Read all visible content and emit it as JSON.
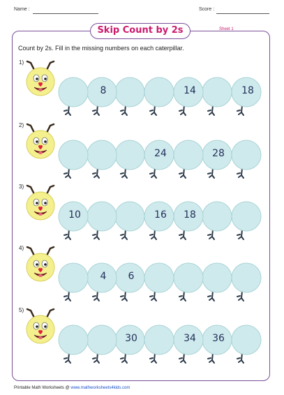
{
  "header": {
    "name_label": "Name :",
    "score_label": "Score :"
  },
  "title": "Skip Count by 2s",
  "sheet": "Sheet 1",
  "instructions": "Count by 2s. Fill in the missing numbers on each caterpillar.",
  "problems": [
    {
      "label": "1)",
      "segments": [
        "",
        "8",
        "",
        "",
        "14",
        "",
        "18"
      ]
    },
    {
      "label": "2)",
      "segments": [
        "",
        "",
        "",
        "24",
        "",
        "28",
        ""
      ]
    },
    {
      "label": "3)",
      "segments": [
        "10",
        "",
        "",
        "16",
        "18",
        "",
        ""
      ]
    },
    {
      "label": "4)",
      "segments": [
        "",
        "4",
        "6",
        "",
        "",
        "",
        ""
      ]
    },
    {
      "label": "5)",
      "segments": [
        "",
        "",
        "30",
        "",
        "34",
        "36",
        ""
      ]
    }
  ],
  "footer": {
    "prefix": "Printable Math Worksheets @",
    "url": "www.mathworksheets4kids.com"
  },
  "colors": {
    "segment_fill": "#cfeaec",
    "segment_stroke": "#a9d3d6",
    "head_fill": "#f4f08e",
    "frame": "#7a4f9a",
    "title": "#cc1a6d",
    "number": "#22315c"
  }
}
